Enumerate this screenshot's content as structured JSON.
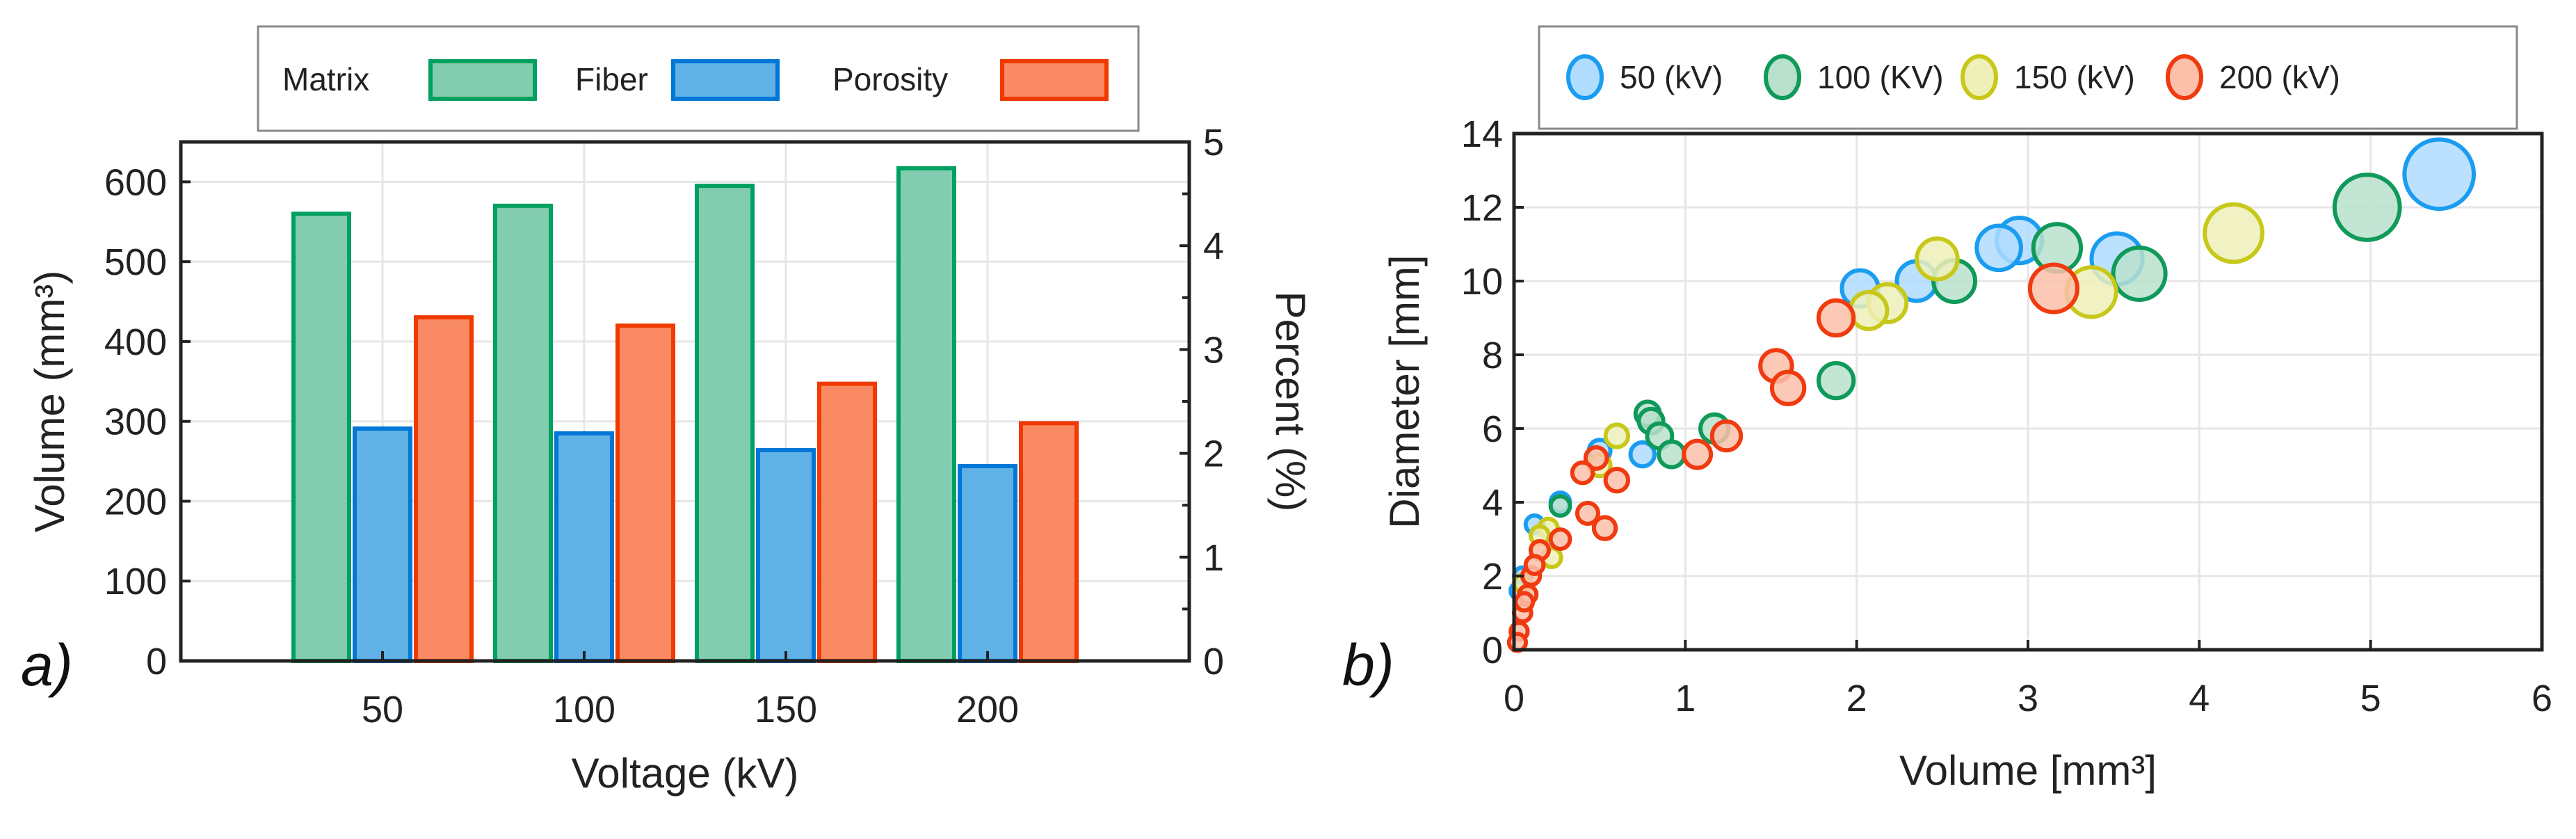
{
  "chart_data": [
    {
      "type": "bar",
      "panel_label": "a)",
      "xlabel": "Voltage (kV)",
      "ylabel": "Volume (mm³)",
      "ylabel_right": "Percent (%)",
      "categories": [
        "50",
        "100",
        "150",
        "200"
      ],
      "ylim": [
        0,
        650
      ],
      "ylim_right": [
        0,
        5
      ],
      "yticks": [
        0,
        100,
        200,
        300,
        400,
        500,
        600
      ],
      "yticks_right": [
        0,
        1,
        2,
        3,
        4,
        5
      ],
      "grid": true,
      "legend_position": "top",
      "series": [
        {
          "name": "Matrix",
          "axis": "left",
          "values": [
            560,
            570,
            595,
            617
          ],
          "fill": "#82cdb0",
          "stroke": "#00a060"
        },
        {
          "name": "Fiber",
          "axis": "left",
          "values": [
            291,
            285,
            264,
            244
          ],
          "fill": "#5fb1e6",
          "stroke": "#0077d6"
        },
        {
          "name": "Porosity",
          "axis": "right",
          "values": [
            3.31,
            3.23,
            2.67,
            2.29
          ],
          "fill": "#f98a63",
          "stroke": "#f03a00"
        }
      ]
    },
    {
      "type": "scatter",
      "panel_label": "b)",
      "xlabel": "Volume [mm³]",
      "ylabel": "Diameter [mm]",
      "xlim": [
        0,
        6
      ],
      "ylim": [
        0,
        14
      ],
      "xticks": [
        0,
        1,
        2,
        3,
        4,
        5,
        6
      ],
      "yticks": [
        0,
        2,
        4,
        6,
        8,
        10,
        12,
        14
      ],
      "grid": true,
      "legend_position": "top",
      "marker_size_encodes": "volume",
      "series": [
        {
          "name": "50 (kV)",
          "fill": "#b0dcff",
          "stroke": "#1a9cf0",
          "x": [
            5.4,
            2.95,
            2.83,
            3.52,
            2.35,
            2.02,
            0.75,
            0.5,
            0.27,
            0.12,
            0.05,
            0.03
          ],
          "y": [
            12.9,
            11.1,
            10.9,
            10.6,
            10.0,
            9.8,
            5.3,
            5.4,
            4.0,
            3.4,
            2.0,
            1.6
          ]
        },
        {
          "name": "100 (KV)",
          "fill": "#b8e0cc",
          "stroke": "#109a5a",
          "x": [
            4.98,
            3.17,
            3.65,
            2.57,
            1.88,
            1.17,
            0.78,
            0.8,
            0.85,
            0.92,
            0.27
          ],
          "y": [
            12.0,
            10.9,
            10.2,
            10.0,
            7.3,
            6.0,
            6.4,
            6.2,
            5.8,
            5.3,
            3.9
          ]
        },
        {
          "name": "150 (kV)",
          "fill": "#eef0b8",
          "stroke": "#c8c81a",
          "x": [
            4.2,
            3.37,
            2.47,
            2.18,
            2.07,
            0.6,
            0.5,
            0.2,
            0.15,
            0.22,
            0.05
          ],
          "y": [
            11.3,
            9.7,
            10.6,
            9.4,
            9.2,
            5.8,
            5.0,
            3.3,
            3.1,
            2.5,
            1.8
          ]
        },
        {
          "name": "200 (kV)",
          "fill": "#fbbfaa",
          "stroke": "#f03a10",
          "x": [
            3.15,
            1.88,
            1.53,
            1.6,
            1.24,
            1.07,
            0.6,
            0.48,
            0.4,
            0.43,
            0.53,
            0.27,
            0.15,
            0.1,
            0.08,
            0.05,
            0.03,
            0.02,
            0.12,
            0.06
          ],
          "y": [
            9.8,
            9.0,
            7.7,
            7.1,
            5.8,
            5.3,
            4.6,
            5.2,
            4.8,
            3.7,
            3.3,
            3.0,
            2.7,
            2.0,
            1.5,
            1.0,
            0.5,
            0.2,
            2.3,
            1.3
          ]
        }
      ]
    }
  ]
}
